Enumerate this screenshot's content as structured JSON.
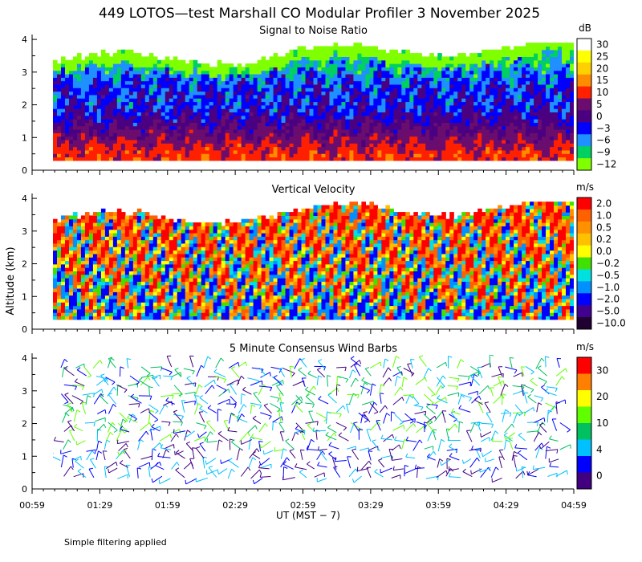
{
  "title": "449 LOTOS—test Marshall CO Modular Profiler  3 November 2025",
  "ylabel": "Altitude (km)",
  "xlabel": "UT  (MST − 7)",
  "footer": "Simple filtering applied",
  "chart_data": [
    {
      "type": "heatmap",
      "title": "Signal to Noise Ratio",
      "unit": "dB",
      "x_ticks": [
        "00:59",
        "01:29",
        "01:59",
        "02:29",
        "02:59",
        "03:29",
        "03:59",
        "04:29",
        "04:59"
      ],
      "y_ticks": [
        "0",
        "1",
        "2",
        "3",
        "4"
      ],
      "ylim": [
        0,
        4.1
      ],
      "xlim": [
        "00:59",
        "04:59"
      ],
      "colorbar": {
        "labels": [
          "30",
          "25",
          "20",
          "15",
          "10",
          "5",
          "0",
          "−3",
          "−6",
          "−9",
          "−12"
        ],
        "colors": [
          "#ffffff",
          "#ffff00",
          "#ffd000",
          "#ff8c00",
          "#ff2000",
          "#6a0d6e",
          "#4b0082",
          "#0000ff",
          "#1e90ff",
          "#00d060",
          "#80ff00"
        ]
      },
      "value_profile_dB": [
        {
          "altitude_km": 0.5,
          "value": 10
        },
        {
          "altitude_km": 1.0,
          "value": 5
        },
        {
          "altitude_km": 1.5,
          "value": 0
        },
        {
          "altitude_km": 2.0,
          "value": -3
        },
        {
          "altitude_km": 2.5,
          "value": -3
        },
        {
          "altitude_km": 3.0,
          "value": -6
        },
        {
          "altitude_km": 3.5,
          "value": -9
        }
      ]
    },
    {
      "type": "heatmap",
      "title": "Vertical Velocity",
      "unit": "m/s",
      "x_ticks": [
        "00:59",
        "01:29",
        "01:59",
        "02:29",
        "02:59",
        "03:29",
        "03:59",
        "04:29",
        "04:59"
      ],
      "y_ticks": [
        "0",
        "1",
        "2",
        "3",
        "4"
      ],
      "ylim": [
        0,
        4.1
      ],
      "xlim": [
        "00:59",
        "04:59"
      ],
      "colorbar": {
        "labels": [
          "2.0",
          "1.0",
          "0.5",
          "0.2",
          "0.0",
          "−0.2",
          "−0.5",
          "−1.0",
          "−2.0",
          "−5.0",
          "−10.0"
        ],
        "colors": [
          "#ff0000",
          "#ff6000",
          "#ff9000",
          "#ffc000",
          "#ffff00",
          "#40e000",
          "#00e0e0",
          "#0090ff",
          "#0000ff",
          "#400090",
          "#200030"
        ]
      },
      "value_profile_ms": [
        {
          "altitude_km": 0.5,
          "value": -0.5
        },
        {
          "altitude_km": 1.0,
          "value": -0.2
        },
        {
          "altitude_km": 2.0,
          "value": 0.2
        },
        {
          "altitude_km": 3.0,
          "value": 0.5
        },
        {
          "altitude_km": 3.5,
          "value": 1.0
        }
      ]
    },
    {
      "type": "scatter",
      "title": "5 Minute Consensus Wind Barbs",
      "unit": "m/s",
      "x_ticks": [
        "00:59",
        "01:29",
        "01:59",
        "02:29",
        "02:59",
        "03:29",
        "03:59",
        "04:29",
        "04:59"
      ],
      "y_ticks": [
        "0",
        "1",
        "2",
        "3",
        "4"
      ],
      "ylim": [
        0,
        4.1
      ],
      "xlim": [
        "00:59",
        "04:59"
      ],
      "colorbar": {
        "labels": [
          "30",
          "20",
          "10",
          "4",
          "0"
        ],
        "colors": [
          "#ff0000",
          "#ff8000",
          "#ffff00",
          "#60ff00",
          "#00c060",
          "#00c0ff",
          "#0000ff",
          "#400080"
        ]
      },
      "speed_profile_ms": [
        {
          "altitude_km": 0.5,
          "value": 3
        },
        {
          "altitude_km": 1.0,
          "value": 3
        },
        {
          "altitude_km": 2.0,
          "value": 2
        },
        {
          "altitude_km": 3.0,
          "value": 4
        },
        {
          "altitude_km": 3.5,
          "value": 5
        }
      ]
    }
  ]
}
